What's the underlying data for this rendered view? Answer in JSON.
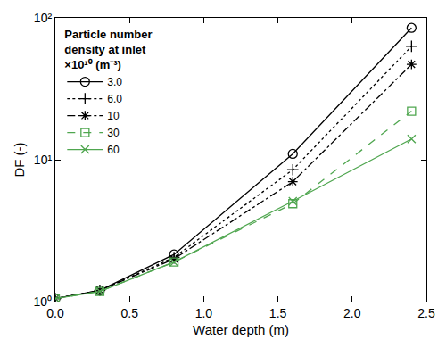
{
  "chart_data": {
    "type": "line",
    "x_label": "Water depth (m)",
    "y_label": "DF (-)",
    "legend_title": [
      "Particle number",
      "density at inlet",
      "×10¹⁰ (m⁻³)"
    ],
    "x": [
      0,
      0.3,
      0.8,
      1.6,
      2.4
    ],
    "series": [
      {
        "name": "3.0",
        "color": "#000000",
        "marker": "circle",
        "line_style": "solid",
        "values": [
          1.05,
          1.2,
          2.15,
          11,
          85
        ]
      },
      {
        "name": "6.0",
        "color": "#000000",
        "marker": "plus",
        "line_style": "dot",
        "values": [
          1.05,
          1.2,
          2.05,
          8.5,
          63
        ]
      },
      {
        "name": "10",
        "color": "#000000",
        "marker": "asterisk",
        "line_style": "dashdot",
        "values": [
          1.05,
          1.2,
          2.0,
          7.0,
          47
        ]
      },
      {
        "name": "30",
        "color": "#4fa64f",
        "marker": "square",
        "line_style": "dash",
        "values": [
          1.05,
          1.18,
          1.9,
          4.9,
          22
        ]
      },
      {
        "name": "60",
        "color": "#4fa64f",
        "marker": "x",
        "line_style": "solid",
        "values": [
          1.05,
          1.18,
          1.9,
          5.1,
          14
        ]
      }
    ],
    "xlim": [
      0,
      2.5
    ],
    "xticks": [
      {
        "value": 0,
        "label": "0.0"
      },
      0.5,
      {
        "value": 1,
        "label": "1.0"
      },
      1.5,
      {
        "value": 2,
        "label": "2.0"
      },
      2.5
    ],
    "ylim": [
      1,
      100
    ],
    "yticks": [
      {
        "value": 1,
        "label": "10⁰"
      },
      {
        "value": 10,
        "label": "10¹"
      },
      {
        "value": 100,
        "label": "10²"
      }
    ],
    "log": "y",
    "grid": false,
    "legend": "upper left"
  }
}
